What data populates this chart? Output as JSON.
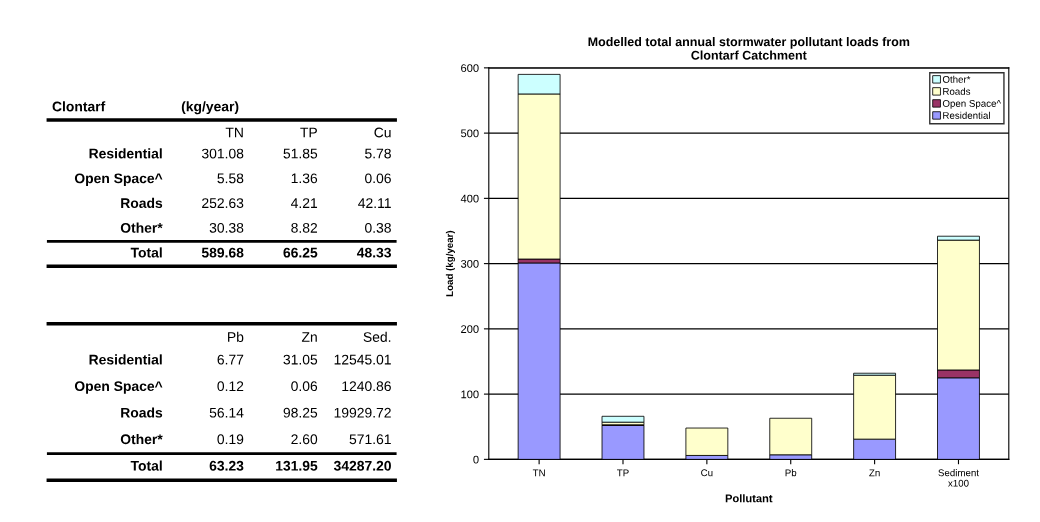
{
  "chart_data": [
    {
      "type": "heatmap",
      "title": "Clontarf",
      "subtitle": "(kg/year)",
      "categories": [
        "TN",
        "TP",
        "Cu"
      ],
      "y_categories": [
        "Residential",
        "Open Space^",
        "Roads",
        "Other*",
        "Total"
      ],
      "cells": [
        [
          301.08,
          51.85,
          5.78
        ],
        [
          5.58,
          1.36,
          0.06
        ],
        [
          252.63,
          4.21,
          42.11
        ],
        [
          30.38,
          8.82,
          0.38
        ],
        [
          589.68,
          66.25,
          48.33
        ]
      ],
      "cell_labels": [
        [
          "301.08",
          "51.85",
          "5.78"
        ],
        [
          "5.58",
          "1.36",
          "0.06"
        ],
        [
          "252.63",
          "4.21",
          "42.11"
        ],
        [
          "30.38",
          "8.82",
          "0.38"
        ],
        [
          "589.68",
          "66.25",
          "48.33"
        ]
      ]
    },
    {
      "type": "heatmap",
      "categories": [
        "Pb",
        "Zn",
        "Sed."
      ],
      "y_categories": [
        "Residential",
        "Open Space^",
        "Roads",
        "Other*",
        "Total"
      ],
      "cells": [
        [
          6.77,
          31.05,
          12545.01
        ],
        [
          0.12,
          0.06,
          1240.86
        ],
        [
          56.14,
          98.25,
          19929.72
        ],
        [
          0.19,
          2.6,
          571.61
        ],
        [
          63.23,
          131.95,
          34287.2
        ]
      ],
      "cell_labels": [
        [
          "6.77",
          "31.05",
          "12545.01"
        ],
        [
          "0.12",
          "0.06",
          "1240.86"
        ],
        [
          "56.14",
          "98.25",
          "19929.72"
        ],
        [
          "0.19",
          "2.60",
          "571.61"
        ],
        [
          "63.23",
          "131.95",
          "34287.20"
        ]
      ]
    },
    {
      "type": "bar",
      "title": "Modelled total annual stormwater pollutant loads from\nClontarf Catchment",
      "xlabel": "Pollutant",
      "ylabel": "Load (kg/year)",
      "categories": [
        "TN",
        "TP",
        "Cu",
        "Pb",
        "Zn",
        "Sediment\nx100"
      ],
      "stacked": true,
      "ylim": [
        0,
        600
      ],
      "yticks": [
        0,
        100,
        200,
        300,
        400,
        500,
        600
      ],
      "grid": "y",
      "legend": "top right",
      "series": [
        {
          "name": "Residential",
          "color": "#9999ff",
          "values": [
            301,
            52,
            6,
            7,
            31,
            125
          ]
        },
        {
          "name": "Open Space^",
          "color": "#993366",
          "values": [
            6,
            1,
            0,
            0,
            0,
            12
          ]
        },
        {
          "name": "Roads",
          "color": "#ffffcc",
          "values": [
            253,
            4,
            42,
            56,
            98,
            199
          ]
        },
        {
          "name": "Other*",
          "color": "#ccffff",
          "values": [
            30,
            9,
            0,
            0,
            3,
            6
          ]
        }
      ]
    }
  ]
}
